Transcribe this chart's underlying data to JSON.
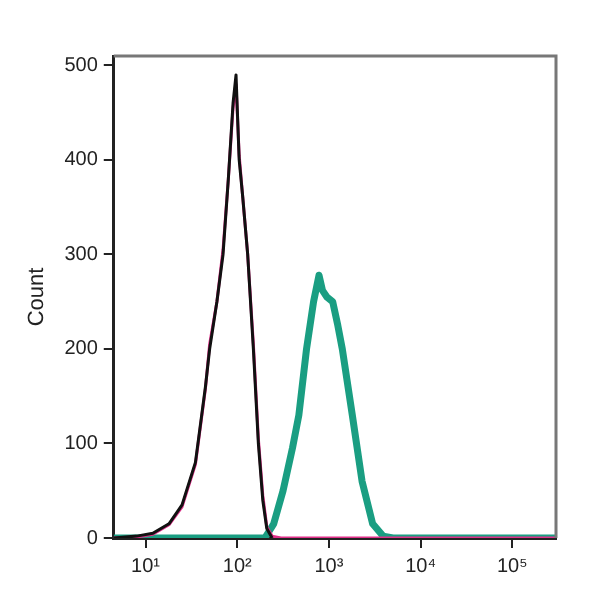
{
  "chart_data": {
    "type": "line",
    "ylabel": "Count",
    "log": "x",
    "grid": false,
    "legend": false,
    "marker": "none",
    "xlim": [
      4.5,
      300000
    ],
    "ylim": [
      0,
      510
    ],
    "xticks": [
      {
        "value": 10,
        "label": "10¹"
      },
      {
        "value": 100,
        "label": "10²"
      },
      {
        "value": 1000,
        "label": "10³"
      },
      {
        "value": 10000,
        "label": "10⁴"
      },
      {
        "value": 100000,
        "label": "10⁵"
      }
    ],
    "yticks": [
      0,
      100,
      200,
      300,
      400,
      500
    ],
    "series": [
      {
        "color": "#1a9e82",
        "x": [
          4.5,
          100,
          200,
          250,
          316,
          400,
          470,
          570,
          680,
          780,
          850,
          950,
          1100,
          1250,
          1400,
          1800,
          2300,
          3000,
          3900,
          5000,
          300000
        ],
        "values": [
          0,
          0,
          0,
          15,
          50,
          95,
          130,
          200,
          250,
          278,
          262,
          255,
          250,
          225,
          200,
          130,
          60,
          15,
          2,
          0,
          0
        ]
      },
      {
        "color": "#e0308a",
        "x": [
          4.5,
          8,
          12,
          18,
          25,
          35,
          45,
          50,
          60,
          70,
          80,
          90,
          97,
          105,
          115,
          130,
          150,
          170,
          190,
          210,
          240,
          300,
          300000
        ],
        "values": [
          0,
          1,
          4,
          14,
          33,
          78,
          158,
          205,
          250,
          305,
          380,
          455,
          480,
          405,
          360,
          300,
          205,
          105,
          45,
          12,
          2,
          0,
          0
        ]
      },
      {
        "color": "#111111",
        "x": [
          4.5,
          8,
          12,
          18,
          25,
          35,
          45,
          50,
          60,
          70,
          80,
          90,
          97,
          105,
          115,
          130,
          150,
          170,
          190,
          210,
          240
        ],
        "values": [
          0,
          2,
          5,
          15,
          35,
          80,
          160,
          200,
          250,
          300,
          380,
          460,
          490,
          400,
          360,
          300,
          200,
          100,
          40,
          10,
          0
        ]
      }
    ]
  }
}
